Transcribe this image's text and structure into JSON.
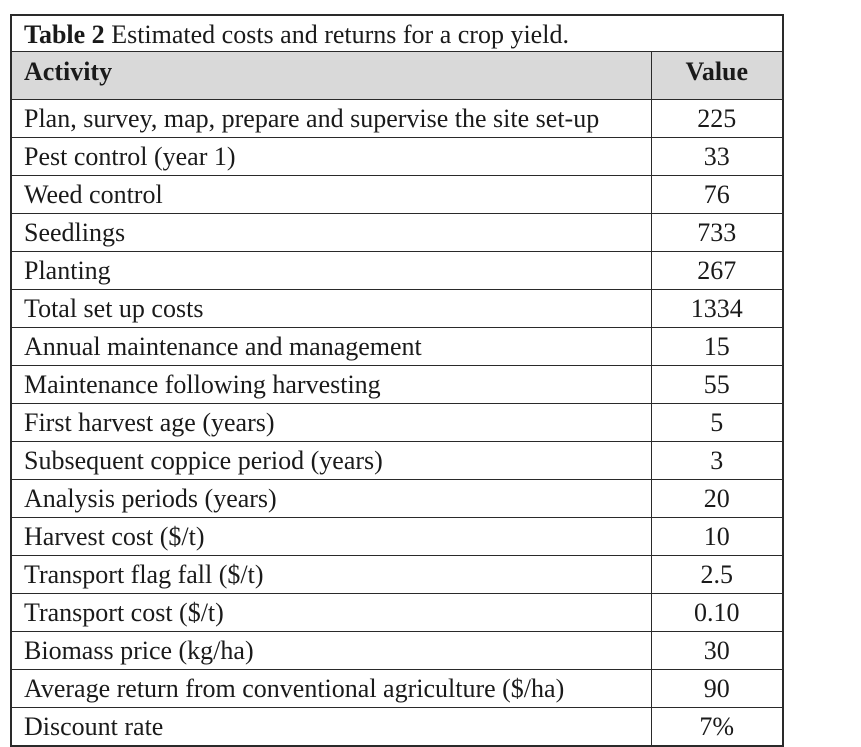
{
  "table": {
    "caption_label": "Table 2",
    "caption_text": " Estimated costs and returns for a crop yield.",
    "headers": {
      "activity": "Activity",
      "value": "Value"
    },
    "rows": [
      {
        "activity": "Plan, survey, map, prepare and supervise the site set-up",
        "value": "225"
      },
      {
        "activity": "Pest control (year 1)",
        "value": "33"
      },
      {
        "activity": "Weed control",
        "value": "76"
      },
      {
        "activity": "Seedlings",
        "value": "733"
      },
      {
        "activity": "Planting",
        "value": "267"
      },
      {
        "activity": "Total set up costs",
        "value": "1334"
      },
      {
        "activity": "Annual maintenance and management",
        "value": "15"
      },
      {
        "activity": "Maintenance following harvesting",
        "value": "55"
      },
      {
        "activity": "First harvest age (years)",
        "value": "5"
      },
      {
        "activity": "Subsequent coppice period (years)",
        "value": "3"
      },
      {
        "activity": "Analysis periods (years)",
        "value": "20"
      },
      {
        "activity": "Harvest cost ($/t)",
        "value": "10"
      },
      {
        "activity": "Transport flag fall ($/t)",
        "value": "2.5"
      },
      {
        "activity": "Transport cost ($/t)",
        "value": "0.10"
      },
      {
        "activity": "Biomass price (kg/ha)",
        "value": "30"
      },
      {
        "activity": "Average return from conventional agriculture ($/ha)",
        "value": "90"
      },
      {
        "activity": "Discount rate",
        "value": "7%"
      }
    ]
  }
}
